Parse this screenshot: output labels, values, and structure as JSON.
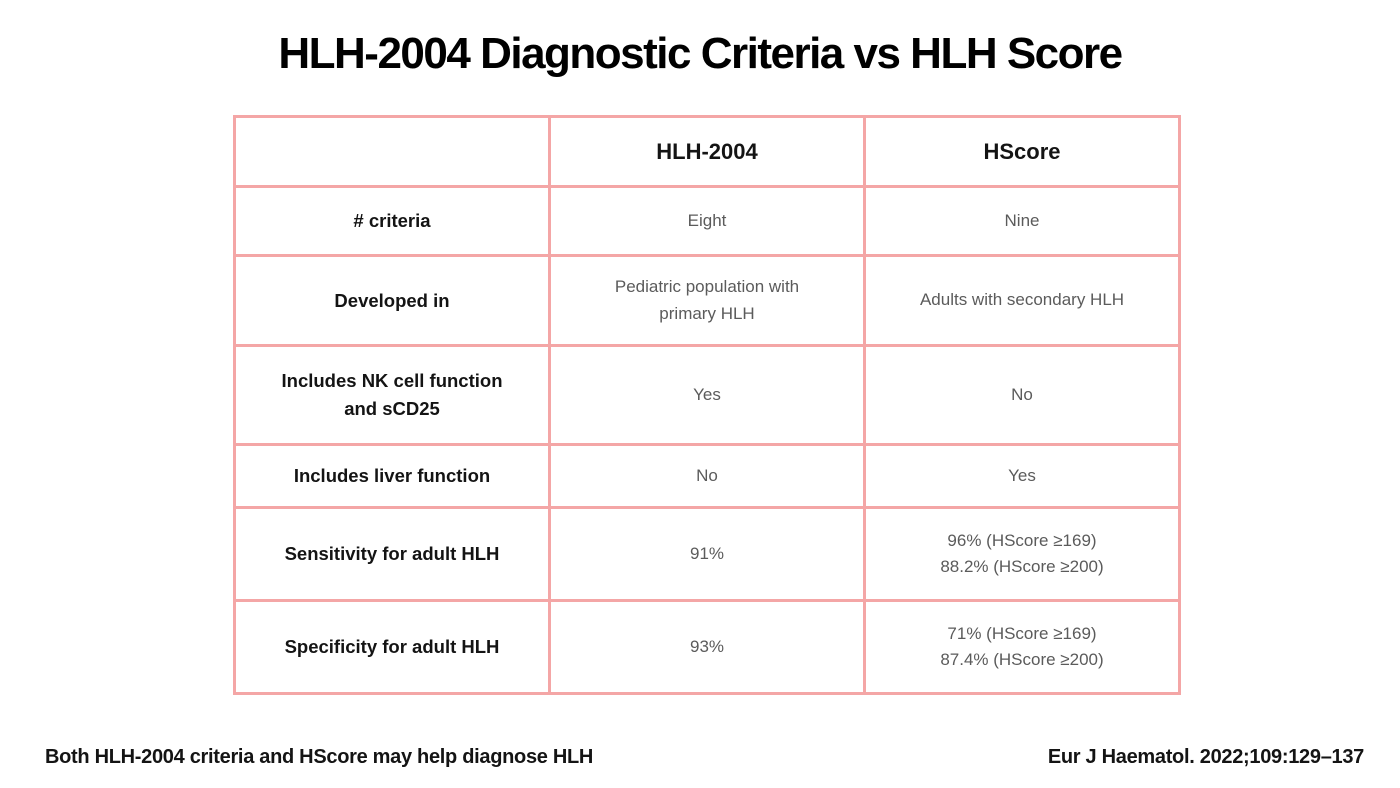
{
  "title": "HLH-2004 Diagnostic Criteria vs HLH Score",
  "table": {
    "columns": {
      "label": "",
      "hlh2004": "HLH-2004",
      "hscore": "HScore"
    },
    "rows": [
      {
        "label": "# criteria",
        "hlh2004": "Eight",
        "hscore": "Nine"
      },
      {
        "label": "Developed in",
        "hlh2004": "Pediatric population with\nprimary HLH",
        "hscore": "Adults with secondary HLH"
      },
      {
        "label": "Includes NK cell function\nand sCD25",
        "hlh2004": "Yes",
        "hscore": "No"
      },
      {
        "label": "Includes liver function",
        "hlh2004": "No",
        "hscore": "Yes"
      },
      {
        "label": "Sensitivity for adult HLH",
        "hlh2004": "91%",
        "hscore": "96% (HScore ≥169)\n88.2% (HScore ≥200)"
      },
      {
        "label": "Specificity for adult HLH",
        "hlh2004": "93%",
        "hscore": "71% (HScore ≥169)\n87.4% (HScore ≥200)"
      }
    ]
  },
  "footer": {
    "left": "Both HLH-2004 criteria and HScore may help diagnose HLH",
    "right": "Eur J Haematol. 2022;109:129–137"
  },
  "colors": {
    "table_border": "#f4a6a6",
    "value_text": "#5b5b5b",
    "heading_text": "#000000"
  }
}
